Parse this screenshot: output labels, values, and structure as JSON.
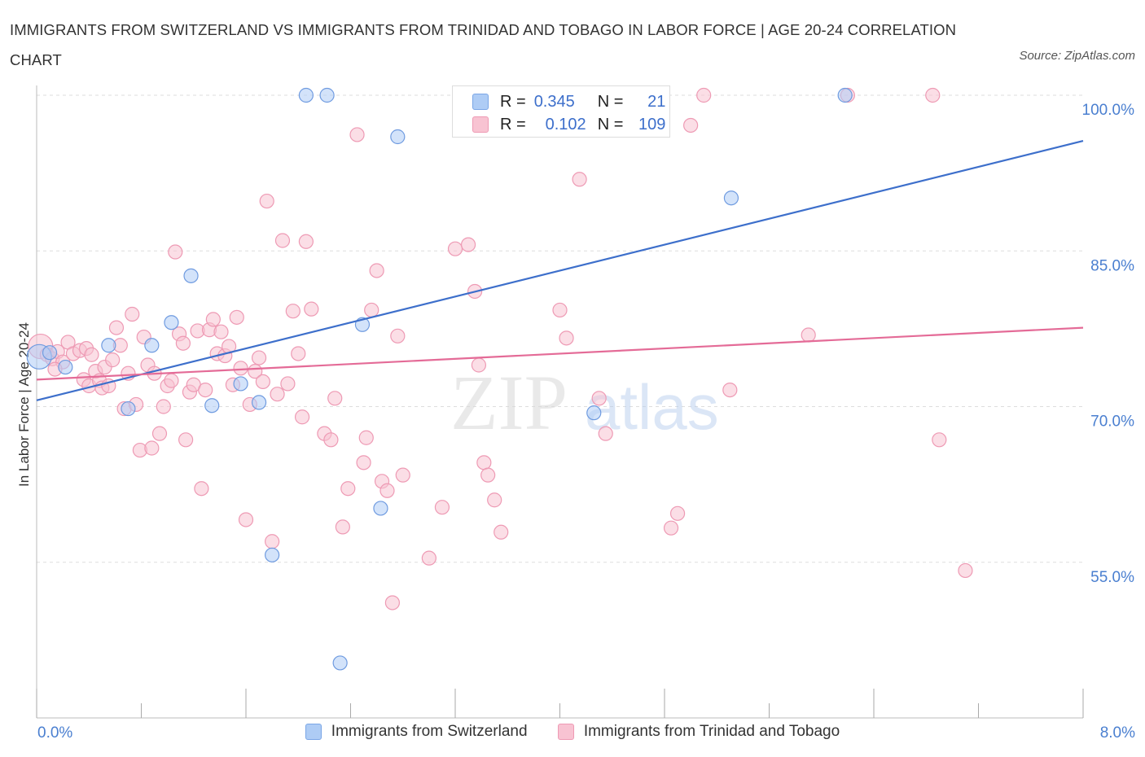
{
  "title": "IMMIGRANTS FROM SWITZERLAND VS IMMIGRANTS FROM TRINIDAD AND TOBAGO IN LABOR FORCE | AGE 20-24 CORRELATION CHART",
  "source": "Source: ZipAtlas.com",
  "watermark": {
    "zip": "ZIP",
    "atlas": "atlas"
  },
  "colors": {
    "blue": "#3d6fcb",
    "blue_fill": "#aeccf5",
    "pink": "#e46b97",
    "pink_fill": "#f8c3d2",
    "grid": "#dddddd",
    "axis_label": "#4a7fd0"
  },
  "stats": {
    "blue": {
      "r_label": "R =",
      "r": "0.345",
      "n_label": "N =",
      "n": "21"
    },
    "pink": {
      "r_label": "R =",
      "r": "0.102",
      "n_label": "N =",
      "n": "109"
    }
  },
  "chart_data": {
    "type": "scatter",
    "title": "IMMIGRANTS FROM SWITZERLAND VS IMMIGRANTS FROM TRINIDAD AND TOBAGO IN LABOR FORCE | AGE 20-24 CORRELATION CHART",
    "xlabel": "",
    "ylabel": "In Labor Force | Age 20-24",
    "xlim": [
      0,
      8
    ],
    "ylim": [
      40,
      100
    ],
    "x_tick_labels": [
      "0.0%",
      "8.0%"
    ],
    "y_ticks": [
      55,
      70,
      85,
      100
    ],
    "y_tick_labels": [
      "55.0%",
      "70.0%",
      "85.0%",
      "100.0%"
    ],
    "grid": true,
    "legend_position": "bottom",
    "series": [
      {
        "name": "Immigrants from Switzerland",
        "color": "#3d6fcb",
        "trend": {
          "x": [
            0,
            8
          ],
          "y": [
            70.6,
            95.6
          ]
        },
        "points": [
          {
            "x": 0.02,
            "y": 74.8,
            "big": true
          },
          {
            "x": 0.22,
            "y": 73.8
          },
          {
            "x": 0.55,
            "y": 75.9
          },
          {
            "x": 0.7,
            "y": 69.8
          },
          {
            "x": 0.88,
            "y": 75.9
          },
          {
            "x": 1.03,
            "y": 78.1
          },
          {
            "x": 1.18,
            "y": 82.6
          },
          {
            "x": 1.34,
            "y": 70.1
          },
          {
            "x": 1.56,
            "y": 72.2
          },
          {
            "x": 1.7,
            "y": 70.4
          },
          {
            "x": 1.8,
            "y": 55.7
          },
          {
            "x": 2.06,
            "y": 100.0
          },
          {
            "x": 2.22,
            "y": 100.0
          },
          {
            "x": 2.32,
            "y": 45.3
          },
          {
            "x": 2.49,
            "y": 77.9
          },
          {
            "x": 2.63,
            "y": 60.2
          },
          {
            "x": 2.76,
            "y": 96.0
          },
          {
            "x": 4.26,
            "y": 69.4
          },
          {
            "x": 5.31,
            "y": 90.1
          },
          {
            "x": 6.18,
            "y": 100.0
          },
          {
            "x": 0.1,
            "y": 75.2
          }
        ]
      },
      {
        "name": "Immigrants from Trinidad and Tobago",
        "color": "#e46b97",
        "trend": {
          "x": [
            0,
            8
          ],
          "y": [
            72.6,
            77.6
          ]
        },
        "points": [
          {
            "x": 0.03,
            "y": 75.8,
            "big": true
          },
          {
            "x": 0.08,
            "y": 75.0
          },
          {
            "x": 0.12,
            "y": 74.6
          },
          {
            "x": 0.16,
            "y": 75.3
          },
          {
            "x": 0.2,
            "y": 74.3
          },
          {
            "x": 0.24,
            "y": 76.2
          },
          {
            "x": 0.28,
            "y": 75.1
          },
          {
            "x": 0.33,
            "y": 75.4
          },
          {
            "x": 0.36,
            "y": 72.6
          },
          {
            "x": 0.38,
            "y": 75.6
          },
          {
            "x": 0.4,
            "y": 72.0
          },
          {
            "x": 0.42,
            "y": 75.0
          },
          {
            "x": 0.45,
            "y": 73.4
          },
          {
            "x": 0.48,
            "y": 72.5
          },
          {
            "x": 0.5,
            "y": 71.8
          },
          {
            "x": 0.52,
            "y": 73.8
          },
          {
            "x": 0.55,
            "y": 72.0
          },
          {
            "x": 0.58,
            "y": 74.5
          },
          {
            "x": 0.61,
            "y": 77.6
          },
          {
            "x": 0.64,
            "y": 75.9
          },
          {
            "x": 0.67,
            "y": 69.8
          },
          {
            "x": 0.7,
            "y": 73.2
          },
          {
            "x": 0.73,
            "y": 78.9
          },
          {
            "x": 0.76,
            "y": 70.2
          },
          {
            "x": 0.79,
            "y": 65.8
          },
          {
            "x": 0.82,
            "y": 76.7
          },
          {
            "x": 0.85,
            "y": 74.0
          },
          {
            "x": 0.88,
            "y": 66.0
          },
          {
            "x": 0.9,
            "y": 73.2
          },
          {
            "x": 0.94,
            "y": 67.4
          },
          {
            "x": 0.97,
            "y": 70.0
          },
          {
            "x": 1.0,
            "y": 72.0
          },
          {
            "x": 1.03,
            "y": 72.5
          },
          {
            "x": 1.06,
            "y": 84.9
          },
          {
            "x": 1.09,
            "y": 77.0
          },
          {
            "x": 1.12,
            "y": 76.1
          },
          {
            "x": 1.14,
            "y": 66.8
          },
          {
            "x": 1.17,
            "y": 71.4
          },
          {
            "x": 1.2,
            "y": 72.1
          },
          {
            "x": 1.23,
            "y": 77.3
          },
          {
            "x": 1.26,
            "y": 62.1
          },
          {
            "x": 1.29,
            "y": 71.6
          },
          {
            "x": 1.32,
            "y": 77.4
          },
          {
            "x": 1.35,
            "y": 78.4
          },
          {
            "x": 1.38,
            "y": 75.1
          },
          {
            "x": 1.41,
            "y": 77.2
          },
          {
            "x": 1.44,
            "y": 74.9
          },
          {
            "x": 1.47,
            "y": 75.8
          },
          {
            "x": 1.5,
            "y": 72.1
          },
          {
            "x": 1.53,
            "y": 78.6
          },
          {
            "x": 1.56,
            "y": 73.7
          },
          {
            "x": 1.6,
            "y": 59.1
          },
          {
            "x": 1.63,
            "y": 70.2
          },
          {
            "x": 1.67,
            "y": 73.4
          },
          {
            "x": 1.7,
            "y": 74.7
          },
          {
            "x": 1.73,
            "y": 72.4
          },
          {
            "x": 1.76,
            "y": 89.8
          },
          {
            "x": 1.8,
            "y": 57.0
          },
          {
            "x": 1.84,
            "y": 71.2
          },
          {
            "x": 1.88,
            "y": 86.0
          },
          {
            "x": 1.92,
            "y": 72.2
          },
          {
            "x": 1.96,
            "y": 79.2
          },
          {
            "x": 2.0,
            "y": 75.1
          },
          {
            "x": 2.03,
            "y": 69.0
          },
          {
            "x": 2.06,
            "y": 85.9
          },
          {
            "x": 2.1,
            "y": 79.4
          },
          {
            "x": 2.2,
            "y": 67.4
          },
          {
            "x": 2.25,
            "y": 66.8
          },
          {
            "x": 2.28,
            "y": 70.8
          },
          {
            "x": 2.34,
            "y": 58.4
          },
          {
            "x": 2.38,
            "y": 62.1
          },
          {
            "x": 2.45,
            "y": 96.2
          },
          {
            "x": 2.5,
            "y": 64.6
          },
          {
            "x": 2.52,
            "y": 67.0
          },
          {
            "x": 2.56,
            "y": 79.3
          },
          {
            "x": 2.6,
            "y": 83.1
          },
          {
            "x": 2.64,
            "y": 62.8
          },
          {
            "x": 2.68,
            "y": 61.9
          },
          {
            "x": 2.72,
            "y": 51.1
          },
          {
            "x": 2.76,
            "y": 76.8
          },
          {
            "x": 2.8,
            "y": 63.4
          },
          {
            "x": 3.0,
            "y": 55.4
          },
          {
            "x": 3.1,
            "y": 60.3
          },
          {
            "x": 3.2,
            "y": 85.2
          },
          {
            "x": 3.25,
            "y": 100.0
          },
          {
            "x": 3.3,
            "y": 85.6
          },
          {
            "x": 3.35,
            "y": 81.1
          },
          {
            "x": 3.38,
            "y": 74.0
          },
          {
            "x": 3.42,
            "y": 64.6
          },
          {
            "x": 3.45,
            "y": 63.4
          },
          {
            "x": 3.5,
            "y": 61.0
          },
          {
            "x": 3.55,
            "y": 57.9
          },
          {
            "x": 3.62,
            "y": 98.0
          },
          {
            "x": 4.0,
            "y": 79.3
          },
          {
            "x": 4.05,
            "y": 76.6
          },
          {
            "x": 4.15,
            "y": 91.9
          },
          {
            "x": 4.3,
            "y": 70.8
          },
          {
            "x": 4.35,
            "y": 67.4
          },
          {
            "x": 4.85,
            "y": 58.3
          },
          {
            "x": 4.9,
            "y": 59.7
          },
          {
            "x": 5.0,
            "y": 97.1
          },
          {
            "x": 5.1,
            "y": 100.0
          },
          {
            "x": 5.3,
            "y": 71.6
          },
          {
            "x": 5.9,
            "y": 76.9
          },
          {
            "x": 6.2,
            "y": 100.0
          },
          {
            "x": 6.85,
            "y": 100.0
          },
          {
            "x": 6.9,
            "y": 66.8
          },
          {
            "x": 7.1,
            "y": 54.2
          },
          {
            "x": 0.14,
            "y": 73.6
          }
        ]
      }
    ]
  }
}
